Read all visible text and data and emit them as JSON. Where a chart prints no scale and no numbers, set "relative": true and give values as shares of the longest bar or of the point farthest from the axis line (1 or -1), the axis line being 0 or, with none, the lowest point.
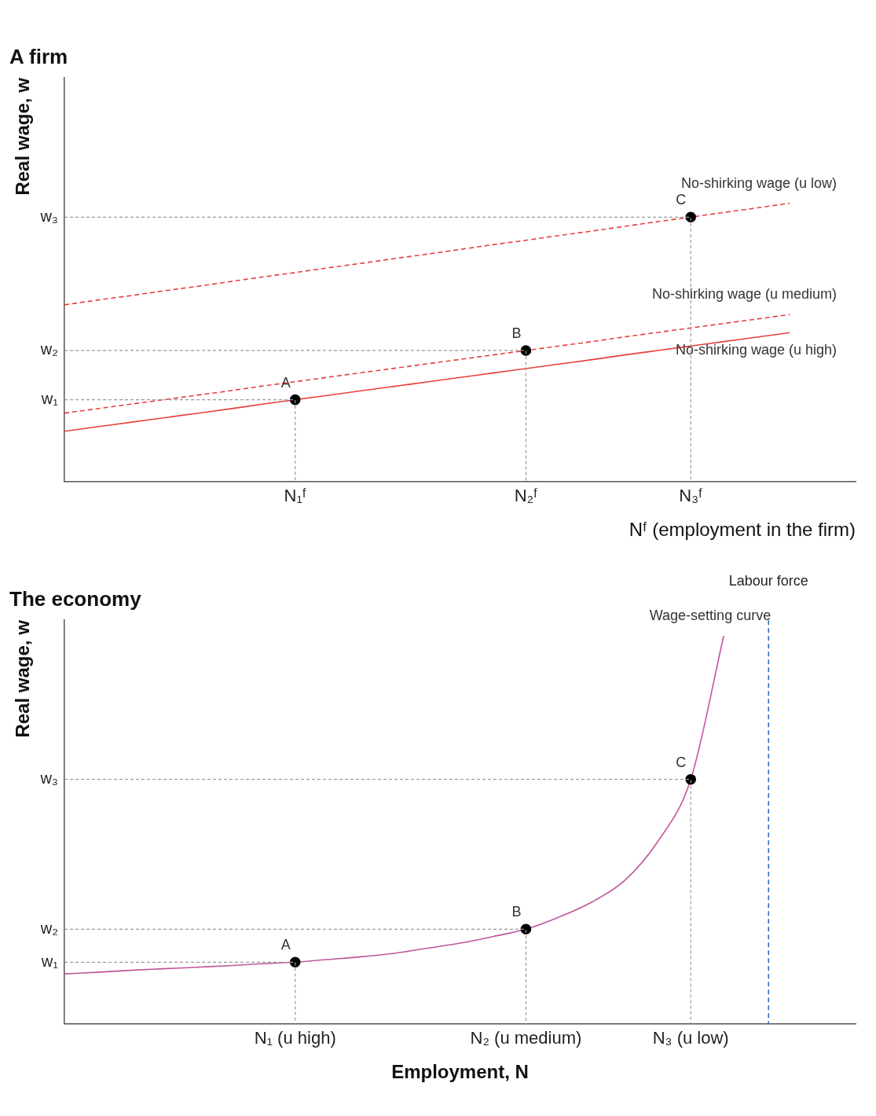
{
  "chart_data": [
    {
      "type": "line",
      "relative": true,
      "title": "A firm",
      "ylabel": "Real wage, w",
      "xlabel": "Nᶠ (employment in the firm)",
      "categories": [
        null,
        null,
        null,
        null,
        null,
        null,
        null,
        "N₁ᶠ",
        null,
        null,
        null,
        null,
        null,
        null,
        "N₂ᶠ",
        null,
        null,
        null,
        null,
        "N₃ᶠ",
        null,
        null,
        null,
        null,
        null
      ],
      "grid": false,
      "legend": false,
      "series": [
        {
          "name": "No-shirking wage (u low)",
          "color": "#e8403a",
          "line_style": "dashed",
          "values": [
            0.635,
            0.652,
            0.668,
            0.685,
            0.701,
            0.718,
            0.735,
            0.751,
            0.768,
            0.784,
            0.801,
            0.817,
            0.834,
            0.851,
            0.867,
            0.884,
            0.9,
            0.917,
            0.934,
            0.95,
            0.967,
            0.983,
            1.0,
            null,
            null
          ]
        },
        {
          "name": "No-shirking wage (u medium)",
          "color": "#e8403a",
          "line_style": "dashed",
          "values": [
            0.246,
            0.262,
            0.278,
            0.294,
            0.31,
            0.326,
            0.343,
            0.359,
            0.375,
            0.391,
            0.407,
            0.423,
            0.439,
            0.455,
            0.471,
            0.487,
            0.503,
            0.52,
            0.536,
            0.552,
            0.568,
            0.584,
            0.6,
            null,
            null
          ]
        },
        {
          "name": "No-shirking wage (u high)",
          "color": "#e8403a",
          "line_style": "solid",
          "values": [
            0.181,
            0.197,
            0.213,
            0.229,
            0.245,
            0.261,
            0.278,
            0.294,
            0.31,
            0.326,
            0.342,
            0.358,
            0.374,
            0.39,
            0.406,
            0.422,
            0.438,
            0.455,
            0.471,
            0.487,
            0.503,
            0.519,
            0.535,
            null,
            null
          ]
        },
        {
          "type": "scatter",
          "color": "#000000",
          "marker": "circle",
          "values": [
            null,
            null,
            null,
            null,
            null,
            null,
            null,
            0.294,
            null,
            null,
            null,
            null,
            null,
            null,
            0.471,
            null,
            null,
            null,
            null,
            0.95,
            null,
            null,
            null,
            null,
            null
          ]
        }
      ],
      "annotations": [
        {
          "text": "A",
          "x": "N₁ᶠ",
          "y": 0.294
        },
        {
          "text": "B",
          "x": "N₂ᶠ",
          "y": 0.471
        },
        {
          "text": "C",
          "x": "N₃ᶠ",
          "y": 0.95
        },
        "w₁",
        "w₂",
        "w₃"
      ]
    },
    {
      "type": "line",
      "relative": true,
      "title": "The economy",
      "ylabel": "Real wage, w",
      "xlabel": "Employment, N",
      "categories": [
        null,
        null,
        null,
        null,
        null,
        null,
        null,
        "N₁ (u high)",
        null,
        null,
        null,
        null,
        null,
        null,
        "N₂ (u medium)",
        null,
        null,
        null,
        null,
        "N₃ (u low)",
        null,
        null,
        null,
        null,
        null
      ],
      "grid": false,
      "legend": false,
      "series": [
        {
          "name": "Wage-setting curve",
          "color": "#c0569e",
          "line_style": "solid",
          "values": [
            0.129,
            0.133,
            0.138,
            0.142,
            0.146,
            0.15,
            0.155,
            0.159,
            0.166,
            0.173,
            0.182,
            0.195,
            0.208,
            0.225,
            0.244,
            0.275,
            0.314,
            0.37,
            0.47,
            0.63,
            1.0,
            null,
            null,
            null,
            null
          ]
        },
        {
          "type": "scatter",
          "color": "#000000",
          "marker": "circle",
          "values": [
            null,
            null,
            null,
            null,
            null,
            null,
            null,
            0.159,
            null,
            null,
            null,
            null,
            null,
            null,
            0.244,
            null,
            null,
            null,
            null,
            0.63,
            null,
            null,
            null,
            null,
            null
          ]
        }
      ],
      "annotations": [
        {
          "text": "A",
          "x": "N₁ (u high)",
          "y": 0.159
        },
        {
          "text": "B",
          "x": "N₂ (u medium)",
          "y": 0.244
        },
        {
          "text": "C",
          "x": "N₃ (u low)",
          "y": 0.63
        },
        "w₁",
        "w₂",
        "w₃",
        "Labour force"
      ]
    }
  ]
}
